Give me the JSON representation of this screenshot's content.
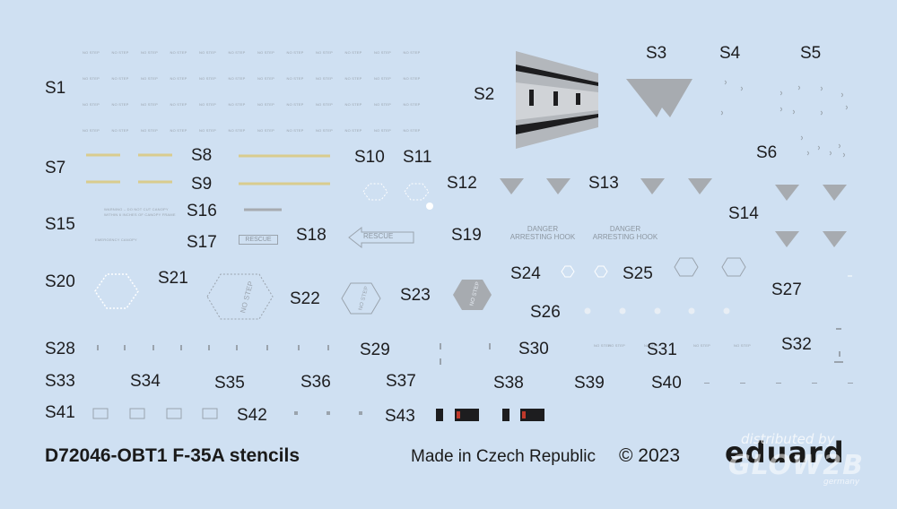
{
  "sheet": {
    "title": "D72046-OBT1 F-35A stencils",
    "made_in": "Made in Czech Republic",
    "copyright": "© 2023",
    "brand": "eduard",
    "watermark_line1": "distributed by",
    "watermark_line2": "GLOW2B",
    "watermark_line3": "germany"
  },
  "labels": {
    "s1": "S1",
    "s2": "S2",
    "s3": "S3",
    "s4": "S4",
    "s5": "S5",
    "s6": "S6",
    "s7": "S7",
    "s8": "S8",
    "s9": "S9",
    "s10": "S10",
    "s11": "S11",
    "s12": "S12",
    "s13": "S13",
    "s14": "S14",
    "s15": "S15",
    "s16": "S16",
    "s17": "S17",
    "s18": "S18",
    "s19": "S19",
    "s20": "S20",
    "s21": "S21",
    "s22": "S22",
    "s23": "S23",
    "s24": "S24",
    "s25": "S25",
    "s26": "S26",
    "s27": "S27",
    "s28": "S28",
    "s29": "S29",
    "s30": "S30",
    "s31": "S31",
    "s32": "S32",
    "s33": "S33",
    "s34": "S34",
    "s35": "S35",
    "s36": "S36",
    "s37": "S37",
    "s38": "S38",
    "s39": "S39",
    "s40": "S40",
    "s41": "S41",
    "s42": "S42",
    "s43": "S43"
  },
  "stencil_text": {
    "no_step": "NO STEP",
    "rescue": "RESCUE",
    "danger": "DANGER",
    "arresting_hook": "ARRESTING HOOK"
  },
  "colors": {
    "background": "#cfe0f2",
    "stencil_gray": "#9aa3ad",
    "dark_gray": "#a7abb0",
    "black": "#1d1d1f",
    "yellow": "#d9cc8e"
  }
}
